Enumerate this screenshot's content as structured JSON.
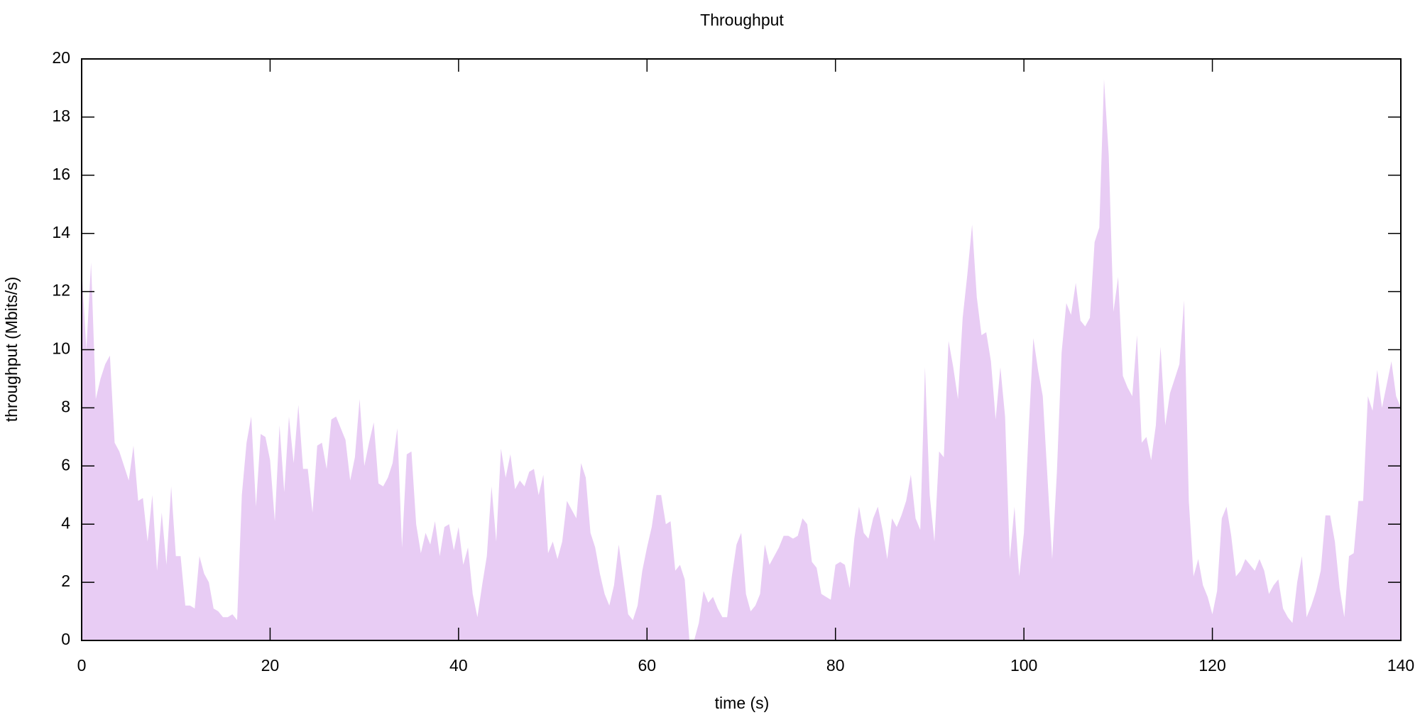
{
  "chart_data": {
    "type": "area",
    "title": "Throughput",
    "xlabel": "time (s)",
    "ylabel": "throughput (Mbits/s)",
    "color": "#e8ccf4",
    "xlim": [
      0,
      140
    ],
    "xticks": [
      0,
      20,
      40,
      60,
      80,
      100,
      120,
      140
    ],
    "ylim": [
      0,
      20
    ],
    "yticks": [
      0,
      2,
      4,
      6,
      8,
      10,
      12,
      14,
      16,
      18,
      20
    ],
    "x": [
      0,
      0.5,
      1,
      1.5,
      2,
      2.5,
      3,
      3.5,
      4,
      4.5,
      5,
      5.5,
      6,
      6.5,
      7,
      7.5,
      8,
      8.5,
      9,
      9.5,
      10,
      10.5,
      11,
      11.5,
      12,
      12.5,
      13,
      13.5,
      14,
      14.5,
      15,
      15.5,
      16,
      16.5,
      17,
      17.5,
      18,
      18.5,
      19,
      19.5,
      20,
      20.5,
      21,
      21.5,
      22,
      22.5,
      23,
      23.5,
      24,
      24.5,
      25,
      25.5,
      26,
      26.5,
      27,
      27.5,
      28,
      28.5,
      29,
      29.5,
      30,
      30.5,
      31,
      31.5,
      32,
      32.5,
      33,
      33.5,
      34,
      34.5,
      35,
      35.5,
      36,
      36.5,
      37,
      37.5,
      38,
      38.5,
      39,
      39.5,
      40,
      40.5,
      41,
      41.5,
      42,
      42.5,
      43,
      43.5,
      44,
      44.5,
      45,
      45.5,
      46,
      46.5,
      47,
      47.5,
      48,
      48.5,
      49,
      49.5,
      50,
      50.5,
      51,
      51.5,
      52,
      52.5,
      53,
      53.5,
      54,
      54.5,
      55,
      55.5,
      56,
      56.5,
      57,
      57.5,
      58,
      58.5,
      59,
      59.5,
      60,
      60.5,
      61,
      61.5,
      62,
      62.5,
      63,
      63.5,
      64,
      64.5,
      65,
      65.5,
      66,
      66.5,
      67,
      67.5,
      68,
      68.5,
      69,
      69.5,
      70,
      70.5,
      71,
      71.5,
      72,
      72.5,
      73,
      73.5,
      74,
      74.5,
      75,
      75.5,
      76,
      76.5,
      77,
      77.5,
      78,
      78.5,
      79,
      79.5,
      80,
      80.5,
      81,
      81.5,
      82,
      82.5,
      83,
      83.5,
      84,
      84.5,
      85,
      85.5,
      86,
      86.5,
      87,
      87.5,
      88,
      88.5,
      89,
      89.5,
      90,
      90.5,
      91,
      91.5,
      92,
      92.5,
      93,
      93.5,
      94,
      94.5,
      95,
      95.5,
      96,
      96.5,
      97,
      97.5,
      98,
      98.5,
      99,
      99.5,
      100,
      100.5,
      101,
      101.5,
      102,
      102.5,
      103,
      103.5,
      104,
      104.5,
      105,
      105.5,
      106,
      106.5,
      107,
      107.5,
      108,
      108.5,
      109,
      109.5,
      110,
      110.5,
      111,
      111.5,
      112,
      112.5,
      113,
      113.5,
      114,
      114.5,
      115,
      115.5,
      116,
      116.5,
      117,
      117.5,
      118,
      118.5,
      119,
      119.5,
      120,
      120.5,
      121,
      121.5,
      122,
      122.5,
      123,
      123.5,
      124,
      124.5,
      125,
      125.5,
      126,
      126.5,
      127,
      127.5,
      128,
      128.5,
      129,
      129.5,
      130,
      130.5,
      131,
      131.5,
      132,
      132.5,
      133,
      133.5,
      134,
      134.5,
      135,
      135.5,
      136,
      136.5,
      137,
      137.5,
      138,
      138.5,
      139,
      139.5,
      140
    ],
    "values": [
      12.8,
      10,
      13,
      8.3,
      9,
      9.5,
      9.8,
      6.8,
      6.5,
      6,
      5.5,
      6.7,
      4.8,
      4.9,
      3.4,
      5,
      2.4,
      4.4,
      2.6,
      5.3,
      2.9,
      2.9,
      1.2,
      1.2,
      1.1,
      2.9,
      2.3,
      2,
      1.1,
      1,
      0.8,
      0.8,
      0.9,
      0.7,
      5,
      6.8,
      7.7,
      4.6,
      7.1,
      7,
      6.2,
      4.1,
      7.4,
      5.1,
      7.7,
      6.1,
      8.1,
      5.9,
      5.9,
      4.4,
      6.7,
      6.8,
      5.9,
      7.6,
      7.7,
      7.3,
      6.9,
      5.5,
      6.3,
      8.3,
      6,
      6.8,
      7.5,
      5.4,
      5.3,
      5.6,
      6.1,
      7.3,
      3.2,
      6.4,
      6.5,
      4,
      3,
      3.7,
      3.3,
      4.1,
      2.9,
      3.9,
      4,
      3.1,
      3.9,
      2.6,
      3.2,
      1.6,
      0.8,
      1.9,
      2.9,
      5.3,
      3.4,
      6.6,
      5.6,
      6.4,
      5.2,
      5.5,
      5.3,
      5.8,
      5.9,
      5,
      5.7,
      3,
      3.4,
      2.8,
      3.4,
      4.8,
      4.5,
      4.2,
      6.1,
      5.6,
      3.7,
      3.2,
      2.3,
      1.6,
      1.2,
      1.9,
      3.3,
      2.1,
      0.9,
      0.7,
      1.2,
      2.4,
      3.2,
      3.9,
      5,
      5,
      4,
      4.1,
      2.4,
      2.6,
      2.1,
      0,
      0,
      0.6,
      1.7,
      1.3,
      1.5,
      1.1,
      0.8,
      0.8,
      2.2,
      3.3,
      3.7,
      1.6,
      1,
      1.2,
      1.6,
      3.3,
      2.6,
      2.9,
      3.2,
      3.6,
      3.6,
      3.5,
      3.6,
      4.2,
      4,
      2.7,
      2.5,
      1.6,
      1.5,
      1.4,
      2.6,
      2.7,
      2.6,
      1.8,
      3.5,
      4.6,
      3.7,
      3.5,
      4.2,
      4.6,
      3.8,
      2.8,
      4.2,
      3.9,
      4.3,
      4.8,
      5.7,
      4.2,
      3.8,
      9.4,
      5,
      3.4,
      6.5,
      6.3,
      10.3,
      9.4,
      8.3,
      11.1,
      12.6,
      14.3,
      11.8,
      10.5,
      10.6,
      9.6,
      7.6,
      9.4,
      7.7,
      2.8,
      4.6,
      2.2,
      3.7,
      7.2,
      10.4,
      9.3,
      8.4,
      5.6,
      2.8,
      5.8,
      9.9,
      11.6,
      11.2,
      12.3,
      11,
      10.8,
      11.1,
      13.7,
      14.2,
      19.3,
      16.7,
      11.3,
      12.5,
      9.1,
      8.7,
      8.4,
      10.5,
      6.8,
      7,
      6.2,
      7.4,
      10.1,
      7.4,
      8.5,
      9,
      9.5,
      11.7,
      4.8,
      2.2,
      2.8,
      1.9,
      1.5,
      0.9,
      1.7,
      4.2,
      4.6,
      3.6,
      2.2,
      2.4,
      2.8,
      2.6,
      2.4,
      2.8,
      2.4,
      1.6,
      1.9,
      2.1,
      1.1,
      0.8,
      0.6,
      2,
      2.9,
      0.8,
      1.2,
      1.7,
      2.4,
      4.3,
      4.3,
      3.4,
      1.8,
      0.8,
      2.9,
      3,
      4.8,
      4.8,
      8.4,
      7.9,
      9.3,
      8,
      8.8,
      9.6,
      8.4,
      8
    ]
  }
}
